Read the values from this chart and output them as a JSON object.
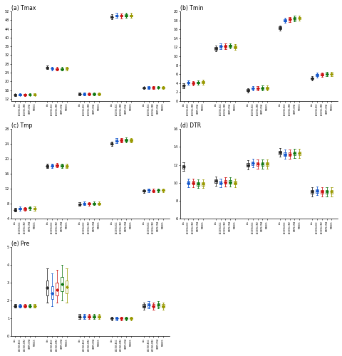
{
  "panels": [
    "(a) Tmax",
    "(b) Tmin",
    "(c) Tmp",
    "(d) DTR",
    "(e) Pre"
  ],
  "box_colors": [
    "#222222",
    "#1155cc",
    "#cc1111",
    "#117711",
    "#999900",
    "#cc6600"
  ],
  "Tmax": {
    "ylim": [
      11,
      52
    ],
    "yticks": [
      12,
      16,
      20,
      24,
      28,
      32,
      36,
      40,
      44,
      48,
      52
    ],
    "regions": {
      "R1": {
        "med": [
          13.8,
          13.9,
          13.85,
          14.0,
          13.9
        ],
        "q1": [
          13.6,
          13.7,
          13.65,
          13.8,
          13.7
        ],
        "q3": [
          14.0,
          14.1,
          14.05,
          14.2,
          14.1
        ],
        "whislo": [
          13.3,
          13.4,
          13.35,
          13.5,
          13.4
        ],
        "whishi": [
          14.3,
          14.4,
          14.35,
          14.5,
          14.4
        ]
      },
      "R2": {
        "med": [
          26.3,
          25.8,
          25.7,
          25.7,
          25.8
        ],
        "q1": [
          26.0,
          25.5,
          25.4,
          25.4,
          25.5
        ],
        "q3": [
          26.6,
          26.1,
          26.0,
          26.0,
          26.1
        ],
        "whislo": [
          25.5,
          25.0,
          24.9,
          24.9,
          25.0
        ],
        "whishi": [
          27.1,
          26.6,
          26.5,
          26.5,
          26.6
        ]
      },
      "R3": {
        "med": [
          14.3,
          14.3,
          14.2,
          14.3,
          14.3
        ],
        "q1": [
          14.0,
          14.0,
          13.9,
          14.0,
          14.0
        ],
        "q3": [
          14.6,
          14.6,
          14.5,
          14.6,
          14.6
        ],
        "whislo": [
          13.7,
          13.7,
          13.6,
          13.7,
          13.7
        ],
        "whishi": [
          14.9,
          14.9,
          14.8,
          14.9,
          14.9
        ]
      },
      "R4": {
        "med": [
          49.5,
          50.1,
          50.0,
          50.2,
          50.1
        ],
        "q1": [
          49.0,
          49.7,
          49.6,
          49.8,
          49.7
        ],
        "q3": [
          50.0,
          50.5,
          50.4,
          50.6,
          50.5
        ],
        "whislo": [
          48.3,
          49.0,
          48.9,
          49.1,
          49.0
        ],
        "whishi": [
          50.7,
          51.2,
          51.1,
          51.3,
          51.2
        ]
      },
      "R5": {
        "med": [
          17.0,
          17.2,
          17.2,
          17.3,
          17.2
        ],
        "q1": [
          16.7,
          16.9,
          16.9,
          17.0,
          16.9
        ],
        "q3": [
          17.3,
          17.5,
          17.5,
          17.6,
          17.5
        ],
        "whislo": [
          16.4,
          16.6,
          16.6,
          16.7,
          16.6
        ],
        "whishi": [
          17.6,
          17.8,
          17.8,
          17.9,
          17.8
        ]
      }
    }
  },
  "Tmin": {
    "ylim": [
      0,
      20
    ],
    "yticks": [
      0,
      2,
      4,
      6,
      8,
      10,
      12,
      14,
      16,
      18,
      20
    ],
    "regions": {
      "R1": {
        "med": [
          3.4,
          4.1,
          4.0,
          4.1,
          4.2
        ],
        "q1": [
          3.2,
          3.9,
          3.8,
          3.9,
          4.0
        ],
        "q3": [
          3.6,
          4.3,
          4.2,
          4.3,
          4.4
        ],
        "whislo": [
          2.9,
          3.6,
          3.5,
          3.6,
          3.7
        ],
        "whishi": [
          3.9,
          4.6,
          4.5,
          4.6,
          4.7
        ]
      },
      "R2": {
        "med": [
          11.7,
          12.2,
          12.2,
          12.3,
          12.1
        ],
        "q1": [
          11.4,
          11.9,
          11.9,
          12.0,
          11.8
        ],
        "q3": [
          12.0,
          12.5,
          12.5,
          12.6,
          12.4
        ],
        "whislo": [
          11.1,
          11.6,
          11.6,
          11.7,
          11.5
        ],
        "whishi": [
          12.3,
          12.8,
          12.8,
          12.9,
          12.7
        ]
      },
      "R3": {
        "med": [
          2.4,
          2.8,
          2.8,
          2.9,
          2.9
        ],
        "q1": [
          2.2,
          2.6,
          2.6,
          2.7,
          2.7
        ],
        "q3": [
          2.6,
          3.0,
          3.0,
          3.1,
          3.1
        ],
        "whislo": [
          1.9,
          2.3,
          2.3,
          2.4,
          2.4
        ],
        "whishi": [
          2.9,
          3.3,
          3.3,
          3.4,
          3.4
        ]
      },
      "R4": {
        "med": [
          16.3,
          18.0,
          18.2,
          18.4,
          18.5
        ],
        "q1": [
          16.0,
          17.7,
          17.9,
          18.1,
          18.2
        ],
        "q3": [
          16.6,
          18.3,
          18.5,
          18.7,
          18.8
        ],
        "whislo": [
          15.7,
          17.4,
          17.6,
          17.8,
          17.9
        ],
        "whishi": [
          16.9,
          18.6,
          18.8,
          19.0,
          19.1
        ]
      },
      "R5": {
        "med": [
          5.1,
          5.8,
          5.9,
          6.0,
          6.0
        ],
        "q1": [
          4.9,
          5.6,
          5.7,
          5.8,
          5.8
        ],
        "q3": [
          5.3,
          6.0,
          6.1,
          6.2,
          6.2
        ],
        "whislo": [
          4.6,
          5.3,
          5.4,
          5.5,
          5.5
        ],
        "whishi": [
          5.6,
          6.3,
          6.4,
          6.5,
          6.5
        ]
      }
    }
  },
  "Tmp": {
    "ylim": [
      4,
      28
    ],
    "yticks": [
      4,
      8,
      12,
      16,
      20,
      24,
      28
    ],
    "regions": {
      "R1": {
        "med": [
          6.4,
          6.7,
          6.6,
          6.8,
          6.7
        ],
        "q1": [
          6.2,
          6.5,
          6.4,
          6.6,
          6.5
        ],
        "q3": [
          6.6,
          6.9,
          6.8,
          7.0,
          6.9
        ],
        "whislo": [
          5.9,
          6.2,
          6.1,
          6.3,
          6.2
        ],
        "whishi": [
          6.9,
          7.2,
          7.1,
          7.3,
          7.2
        ]
      },
      "R2": {
        "med": [
          18.1,
          18.2,
          18.3,
          18.2,
          18.1
        ],
        "q1": [
          17.8,
          17.9,
          18.0,
          17.9,
          17.8
        ],
        "q3": [
          18.4,
          18.5,
          18.6,
          18.5,
          18.4
        ],
        "whislo": [
          17.5,
          17.6,
          17.7,
          17.6,
          17.5
        ],
        "whishi": [
          18.7,
          18.8,
          18.9,
          18.8,
          18.7
        ]
      },
      "R3": {
        "med": [
          7.9,
          8.1,
          8.0,
          8.1,
          8.1
        ],
        "q1": [
          7.7,
          7.9,
          7.8,
          7.9,
          7.9
        ],
        "q3": [
          8.1,
          8.3,
          8.2,
          8.3,
          8.3
        ],
        "whislo": [
          7.4,
          7.6,
          7.5,
          7.6,
          7.6
        ],
        "whishi": [
          8.4,
          8.6,
          8.5,
          8.6,
          8.6
        ]
      },
      "R4": {
        "med": [
          24.1,
          24.9,
          25.0,
          25.1,
          25.0
        ],
        "q1": [
          23.8,
          24.6,
          24.7,
          24.8,
          24.7
        ],
        "q3": [
          24.4,
          25.2,
          25.3,
          25.4,
          25.3
        ],
        "whislo": [
          23.5,
          24.3,
          24.4,
          24.5,
          24.4
        ],
        "whishi": [
          24.7,
          25.5,
          25.6,
          25.7,
          25.6
        ]
      },
      "R5": {
        "med": [
          11.4,
          11.6,
          11.5,
          11.6,
          11.6
        ],
        "q1": [
          11.2,
          11.4,
          11.3,
          11.4,
          11.4
        ],
        "q3": [
          11.6,
          11.8,
          11.7,
          11.8,
          11.8
        ],
        "whislo": [
          10.9,
          11.1,
          11.0,
          11.1,
          11.1
        ],
        "whishi": [
          11.9,
          12.1,
          12.0,
          12.1,
          12.1
        ]
      }
    }
  },
  "DTR": {
    "ylim": [
      6,
      16
    ],
    "yticks": [
      6,
      8,
      10,
      12,
      14,
      16
    ],
    "regions": {
      "R1": {
        "med": [
          11.8,
          10.0,
          10.0,
          9.9,
          9.9
        ],
        "q1": [
          11.6,
          9.8,
          9.8,
          9.7,
          9.7
        ],
        "q3": [
          12.0,
          10.2,
          10.2,
          10.1,
          10.1
        ],
        "whislo": [
          11.3,
          9.5,
          9.5,
          9.4,
          9.4
        ],
        "whishi": [
          12.3,
          10.5,
          10.5,
          10.4,
          10.4
        ]
      },
      "R2": {
        "med": [
          10.2,
          10.0,
          10.1,
          10.1,
          10.0
        ],
        "q1": [
          10.0,
          9.8,
          9.9,
          9.9,
          9.8
        ],
        "q3": [
          10.4,
          10.2,
          10.3,
          10.3,
          10.2
        ],
        "whislo": [
          9.7,
          9.5,
          9.6,
          9.6,
          9.5
        ],
        "whishi": [
          10.7,
          10.5,
          10.6,
          10.6,
          10.5
        ]
      },
      "R3": {
        "med": [
          12.0,
          12.2,
          12.1,
          12.1,
          12.1
        ],
        "q1": [
          11.8,
          12.0,
          11.9,
          11.9,
          11.9
        ],
        "q3": [
          12.2,
          12.4,
          12.3,
          12.3,
          12.3
        ],
        "whislo": [
          11.5,
          11.7,
          11.6,
          11.6,
          11.6
        ],
        "whishi": [
          12.5,
          12.7,
          12.6,
          12.6,
          12.6
        ]
      },
      "R4": {
        "med": [
          13.4,
          13.2,
          13.2,
          13.3,
          13.3
        ],
        "q1": [
          13.2,
          13.0,
          13.0,
          13.1,
          13.1
        ],
        "q3": [
          13.6,
          13.4,
          13.4,
          13.5,
          13.5
        ],
        "whislo": [
          12.9,
          12.7,
          12.7,
          12.8,
          12.8
        ],
        "whishi": [
          13.9,
          13.7,
          13.7,
          13.8,
          13.8
        ]
      },
      "R5": {
        "med": [
          9.0,
          9.1,
          9.0,
          9.0,
          9.0
        ],
        "q1": [
          8.8,
          8.9,
          8.8,
          8.8,
          8.8
        ],
        "q3": [
          9.2,
          9.3,
          9.2,
          9.2,
          9.2
        ],
        "whislo": [
          8.5,
          8.6,
          8.5,
          8.5,
          8.5
        ],
        "whishi": [
          9.5,
          9.6,
          9.5,
          9.5,
          9.5
        ]
      }
    }
  },
  "Pre": {
    "ylim": [
      0.0,
      5.0
    ],
    "yticks": [
      0.0,
      1.0,
      2.0,
      3.0,
      4.0,
      5.0
    ],
    "regions": {
      "R1": {
        "med": [
          1.7,
          1.7,
          1.7,
          1.7,
          1.7
        ],
        "q1": [
          1.65,
          1.65,
          1.65,
          1.65,
          1.65
        ],
        "q3": [
          1.75,
          1.75,
          1.75,
          1.75,
          1.75
        ],
        "whislo": [
          1.6,
          1.6,
          1.6,
          1.6,
          1.6
        ],
        "whishi": [
          1.8,
          1.8,
          1.8,
          1.8,
          1.8
        ]
      },
      "R2": {
        "med": [
          2.7,
          2.4,
          2.6,
          2.9,
          2.75
        ],
        "q1": [
          2.3,
          2.1,
          2.3,
          2.5,
          2.4
        ],
        "q3": [
          3.1,
          2.8,
          3.0,
          3.3,
          3.1
        ],
        "whislo": [
          1.9,
          1.7,
          1.9,
          2.0,
          1.9
        ],
        "whishi": [
          3.8,
          3.5,
          3.7,
          4.0,
          3.8
        ]
      },
      "R3": {
        "med": [
          1.1,
          1.1,
          1.1,
          1.1,
          1.1
        ],
        "q1": [
          1.05,
          1.05,
          1.05,
          1.05,
          1.05
        ],
        "q3": [
          1.15,
          1.15,
          1.15,
          1.15,
          1.15
        ],
        "whislo": [
          0.95,
          0.95,
          0.95,
          0.95,
          0.95
        ],
        "whishi": [
          1.25,
          1.25,
          1.25,
          1.25,
          1.25
        ]
      },
      "R4": {
        "med": [
          1.0,
          1.0,
          1.0,
          1.0,
          1.0
        ],
        "q1": [
          0.95,
          0.95,
          0.95,
          0.95,
          0.95
        ],
        "q3": [
          1.05,
          1.05,
          1.05,
          1.05,
          1.05
        ],
        "whislo": [
          0.9,
          0.9,
          0.9,
          0.9,
          0.9
        ],
        "whishi": [
          1.1,
          1.1,
          1.1,
          1.1,
          1.1
        ]
      },
      "R5": {
        "med": [
          1.7,
          1.75,
          1.7,
          1.75,
          1.7
        ],
        "q1": [
          1.6,
          1.65,
          1.6,
          1.65,
          1.6
        ],
        "q3": [
          1.8,
          1.85,
          1.8,
          1.85,
          1.8
        ],
        "whislo": [
          1.5,
          1.55,
          1.5,
          1.55,
          1.5
        ],
        "whishi": [
          1.9,
          1.95,
          1.9,
          1.95,
          1.9
        ]
      }
    }
  },
  "tick_labels": [
    "obs",
    "ACCESS-BGC",
    "ACCESS-CM2",
    "CMIP5-CM4",
    "MIROC5"
  ]
}
